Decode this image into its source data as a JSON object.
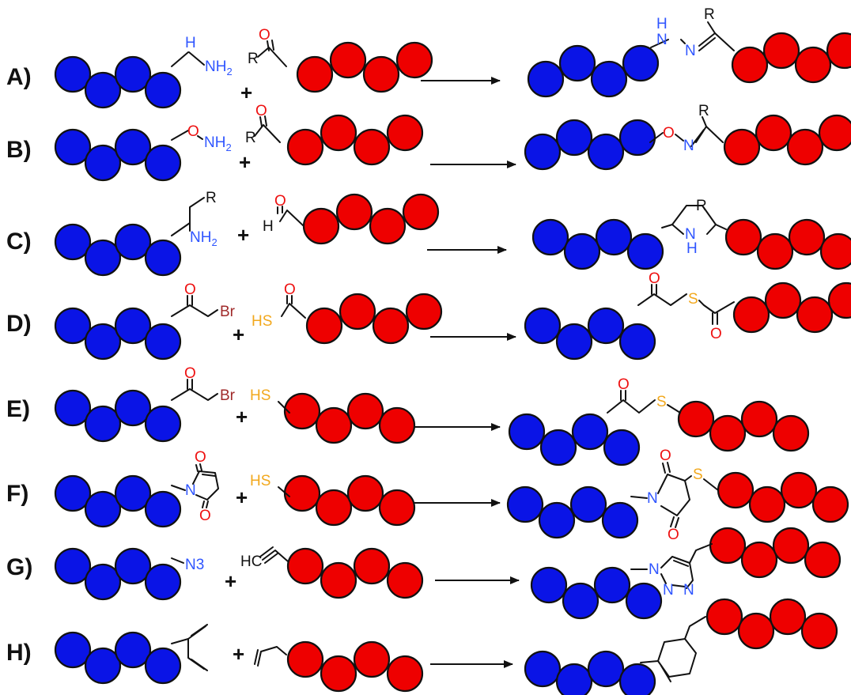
{
  "colors": {
    "donor_bead": "#0a14e6",
    "acceptor_bead": "#ee0000",
    "nitrogen": "#2f55ff",
    "oxygen": "#ee1111",
    "sulfur": "#f2a81d",
    "bromine": "#a02a2a",
    "carbon_text": "#111111"
  },
  "reactions": [
    {
      "label": "A)"
    },
    {
      "label": "B)"
    },
    {
      "label": "C)"
    },
    {
      "label": "D)"
    },
    {
      "label": "E)"
    },
    {
      "label": "F)"
    },
    {
      "label": "G)"
    },
    {
      "label": "H)"
    }
  ],
  "symbols": {
    "plus": "+",
    "H": "H",
    "N": "N",
    "NH2_N": "NH",
    "sub2": "2",
    "O": "O",
    "R": "R",
    "S": "S",
    "HS": "HS",
    "Br": "Br",
    "N3": "N3",
    "HC": "HC"
  }
}
